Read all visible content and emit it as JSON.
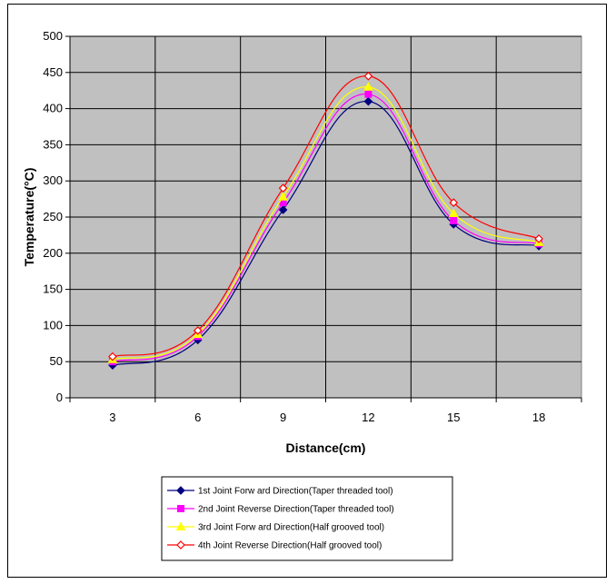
{
  "chart_data": {
    "type": "line",
    "categories": [
      "3",
      "6",
      "9",
      "12",
      "15",
      "18"
    ],
    "x": [
      3,
      6,
      9,
      12,
      15,
      18
    ],
    "xlabel": "Distance(cm)",
    "ylabel": "Temperature(°C)",
    "ylim": [
      0,
      500
    ],
    "yticks": [
      0,
      50,
      100,
      150,
      200,
      250,
      300,
      350,
      400,
      450,
      500
    ],
    "grid": true,
    "plot_background": "#c0c0c0",
    "legend_position": "bottom",
    "series": [
      {
        "name": "1st Joint Forw ard Direction(Taper threaded tool)",
        "values": [
          45,
          80,
          260,
          410,
          240,
          210
        ],
        "color": "#000080",
        "marker": "diamond-filled"
      },
      {
        "name": "2nd Joint Reverse Direction(Taper threaded tool)",
        "values": [
          50,
          85,
          270,
          420,
          245,
          213
        ],
        "color": "#ff00ff",
        "marker": "square-filled"
      },
      {
        "name": "3rd Joint Forw ard Direction(Half grooved tool)",
        "values": [
          53,
          88,
          278,
          430,
          255,
          215
        ],
        "color": "#ffff00",
        "marker": "triangle-filled"
      },
      {
        "name": "4th Joint Reverse Direction(Half grooved tool)",
        "values": [
          57,
          93,
          290,
          445,
          270,
          220
        ],
        "color": "#ff0000",
        "marker": "diamond-open"
      }
    ]
  }
}
